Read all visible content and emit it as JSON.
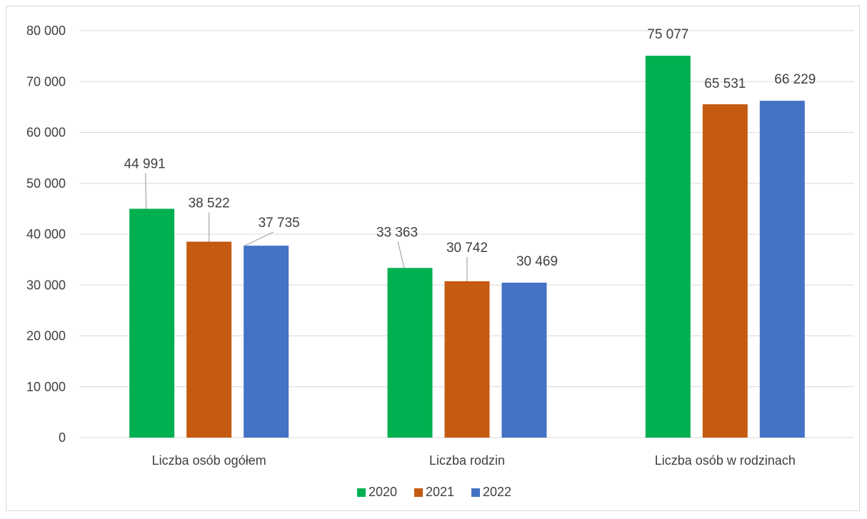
{
  "chart_data": {
    "type": "bar",
    "categories": [
      "Liczba osób ogółem",
      "Liczba rodzin",
      "Liczba osób w rodzinach"
    ],
    "series": [
      {
        "name": "2020",
        "color": "#00b050",
        "values": [
          44991,
          33363,
          75077
        ],
        "labels": [
          "44 991",
          "33 363",
          "75 077"
        ]
      },
      {
        "name": "2021",
        "color": "#c55a11",
        "values": [
          38522,
          30742,
          65531
        ],
        "labels": [
          "38 522",
          "30 742",
          "65 531"
        ]
      },
      {
        "name": "2022",
        "color": "#4472c4",
        "values": [
          37735,
          30469,
          66229
        ],
        "labels": [
          "37 735",
          "30 469",
          "66 229"
        ]
      }
    ],
    "ylim": [
      0,
      80000
    ],
    "yticks": [
      0,
      10000,
      20000,
      30000,
      40000,
      50000,
      60000,
      70000,
      80000
    ],
    "ytick_labels": [
      "0",
      "10 000",
      "20 000",
      "30 000",
      "40 000",
      "50 000",
      "60 000",
      "70 000",
      "80 000"
    ],
    "grid": true,
    "legend_position": "bottom",
    "title": "",
    "xlabel": "",
    "ylabel": ""
  }
}
